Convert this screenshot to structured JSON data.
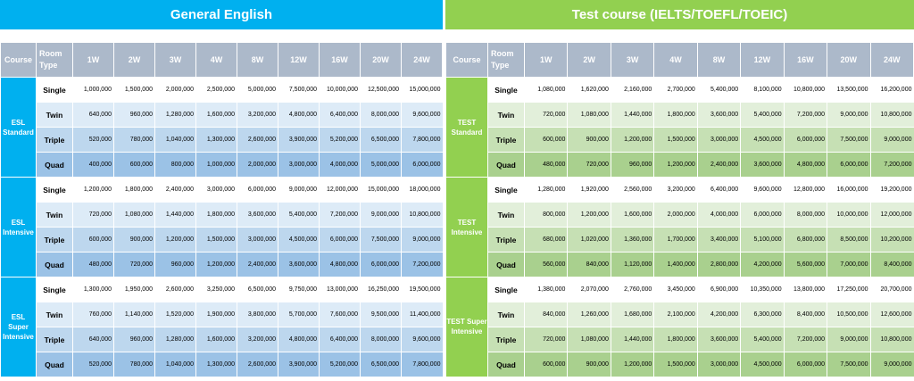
{
  "general": {
    "title": "General English",
    "headers": {
      "course": "Course",
      "room_type": "Room Type",
      "weeks": [
        "1W",
        "2W",
        "3W",
        "4W",
        "8W",
        "12W",
        "16W",
        "20W",
        "24W"
      ]
    },
    "courses": [
      {
        "name": "ESL Standard",
        "rows": [
          {
            "type": "Single",
            "prices": [
              "1,000,000",
              "1,500,000",
              "2,000,000",
              "2,500,000",
              "5,000,000",
              "7,500,000",
              "10,000,000",
              "12,500,000",
              "15,000,000"
            ]
          },
          {
            "type": "Twin",
            "prices": [
              "640,000",
              "960,000",
              "1,280,000",
              "1,600,000",
              "3,200,000",
              "4,800,000",
              "6,400,000",
              "8,000,000",
              "9,600,000"
            ]
          },
          {
            "type": "Triple",
            "prices": [
              "520,000",
              "780,000",
              "1,040,000",
              "1,300,000",
              "2,600,000",
              "3,900,000",
              "5,200,000",
              "6,500,000",
              "7,800,000"
            ]
          },
          {
            "type": "Quad",
            "prices": [
              "400,000",
              "600,000",
              "800,000",
              "1,000,000",
              "2,000,000",
              "3,000,000",
              "4,000,000",
              "5,000,000",
              "6,000,000"
            ]
          }
        ]
      },
      {
        "name": "ESL Intensive",
        "rows": [
          {
            "type": "Single",
            "prices": [
              "1,200,000",
              "1,800,000",
              "2,400,000",
              "3,000,000",
              "6,000,000",
              "9,000,000",
              "12,000,000",
              "15,000,000",
              "18,000,000"
            ]
          },
          {
            "type": "Twin",
            "prices": [
              "720,000",
              "1,080,000",
              "1,440,000",
              "1,800,000",
              "3,600,000",
              "5,400,000",
              "7,200,000",
              "9,000,000",
              "10,800,000"
            ]
          },
          {
            "type": "Triple",
            "prices": [
              "600,000",
              "900,000",
              "1,200,000",
              "1,500,000",
              "3,000,000",
              "4,500,000",
              "6,000,000",
              "7,500,000",
              "9,000,000"
            ]
          },
          {
            "type": "Quad",
            "prices": [
              "480,000",
              "720,000",
              "960,000",
              "1,200,000",
              "2,400,000",
              "3,600,000",
              "4,800,000",
              "6,000,000",
              "7,200,000"
            ]
          }
        ]
      },
      {
        "name": "ESL Super Intensive",
        "rows": [
          {
            "type": "Single",
            "prices": [
              "1,300,000",
              "1,950,000",
              "2,600,000",
              "3,250,000",
              "6,500,000",
              "9,750,000",
              "13,000,000",
              "16,250,000",
              "19,500,000"
            ]
          },
          {
            "type": "Twin",
            "prices": [
              "760,000",
              "1,140,000",
              "1,520,000",
              "1,900,000",
              "3,800,000",
              "5,700,000",
              "7,600,000",
              "9,500,000",
              "11,400,000"
            ]
          },
          {
            "type": "Triple",
            "prices": [
              "640,000",
              "960,000",
              "1,280,000",
              "1,600,000",
              "3,200,000",
              "4,800,000",
              "6,400,000",
              "8,000,000",
              "9,600,000"
            ]
          },
          {
            "type": "Quad",
            "prices": [
              "520,000",
              "780,000",
              "1,040,000",
              "1,300,000",
              "2,600,000",
              "3,900,000",
              "5,200,000",
              "6,500,000",
              "7,800,000"
            ]
          }
        ]
      }
    ]
  },
  "test": {
    "title": "Test course (IELTS/TOEFL/TOEIC)",
    "headers": {
      "course": "Course",
      "room_type": "Room Type",
      "weeks": [
        "1W",
        "2W",
        "3W",
        "4W",
        "8W",
        "12W",
        "16W",
        "20W",
        "24W"
      ]
    },
    "courses": [
      {
        "name": "TEST Standard",
        "rows": [
          {
            "type": "Single",
            "prices": [
              "1,080,000",
              "1,620,000",
              "2,160,000",
              "2,700,000",
              "5,400,000",
              "8,100,000",
              "10,800,000",
              "13,500,000",
              "16,200,000"
            ]
          },
          {
            "type": "Twin",
            "prices": [
              "720,000",
              "1,080,000",
              "1,440,000",
              "1,800,000",
              "3,600,000",
              "5,400,000",
              "7,200,000",
              "9,000,000",
              "10,800,000"
            ]
          },
          {
            "type": "Triple",
            "prices": [
              "600,000",
              "900,000",
              "1,200,000",
              "1,500,000",
              "3,000,000",
              "4,500,000",
              "6,000,000",
              "7,500,000",
              "9,000,000"
            ]
          },
          {
            "type": "Quad",
            "prices": [
              "480,000",
              "720,000",
              "960,000",
              "1,200,000",
              "2,400,000",
              "3,600,000",
              "4,800,000",
              "6,000,000",
              "7,200,000"
            ]
          }
        ]
      },
      {
        "name": "TEST Intensive",
        "rows": [
          {
            "type": "Single",
            "prices": [
              "1,280,000",
              "1,920,000",
              "2,560,000",
              "3,200,000",
              "6,400,000",
              "9,600,000",
              "12,800,000",
              "16,000,000",
              "19,200,000"
            ]
          },
          {
            "type": "Twin",
            "prices": [
              "800,000",
              "1,200,000",
              "1,600,000",
              "2,000,000",
              "4,000,000",
              "6,000,000",
              "8,000,000",
              "10,000,000",
              "12,000,000"
            ]
          },
          {
            "type": "Triple",
            "prices": [
              "680,000",
              "1,020,000",
              "1,360,000",
              "1,700,000",
              "3,400,000",
              "5,100,000",
              "6,800,000",
              "8,500,000",
              "10,200,000"
            ]
          },
          {
            "type": "Quad",
            "prices": [
              "560,000",
              "840,000",
              "1,120,000",
              "1,400,000",
              "2,800,000",
              "4,200,000",
              "5,600,000",
              "7,000,000",
              "8,400,000"
            ]
          }
        ]
      },
      {
        "name": "TEST Super Intensive",
        "rows": [
          {
            "type": "Single",
            "prices": [
              "1,380,000",
              "2,070,000",
              "2,760,000",
              "3,450,000",
              "6,900,000",
              "10,350,000",
              "13,800,000",
              "17,250,000",
              "20,700,000"
            ]
          },
          {
            "type": "Twin",
            "prices": [
              "840,000",
              "1,260,000",
              "1,680,000",
              "2,100,000",
              "4,200,000",
              "6,300,000",
              "8,400,000",
              "10,500,000",
              "12,600,000"
            ]
          },
          {
            "type": "Triple",
            "prices": [
              "720,000",
              "1,080,000",
              "1,440,000",
              "1,800,000",
              "3,600,000",
              "5,400,000",
              "7,200,000",
              "9,000,000",
              "10,800,000"
            ]
          },
          {
            "type": "Quad",
            "prices": [
              "600,000",
              "900,000",
              "1,200,000",
              "1,500,000",
              "3,000,000",
              "4,500,000",
              "6,000,000",
              "7,500,000",
              "9,000,000"
            ]
          }
        ]
      }
    ]
  }
}
